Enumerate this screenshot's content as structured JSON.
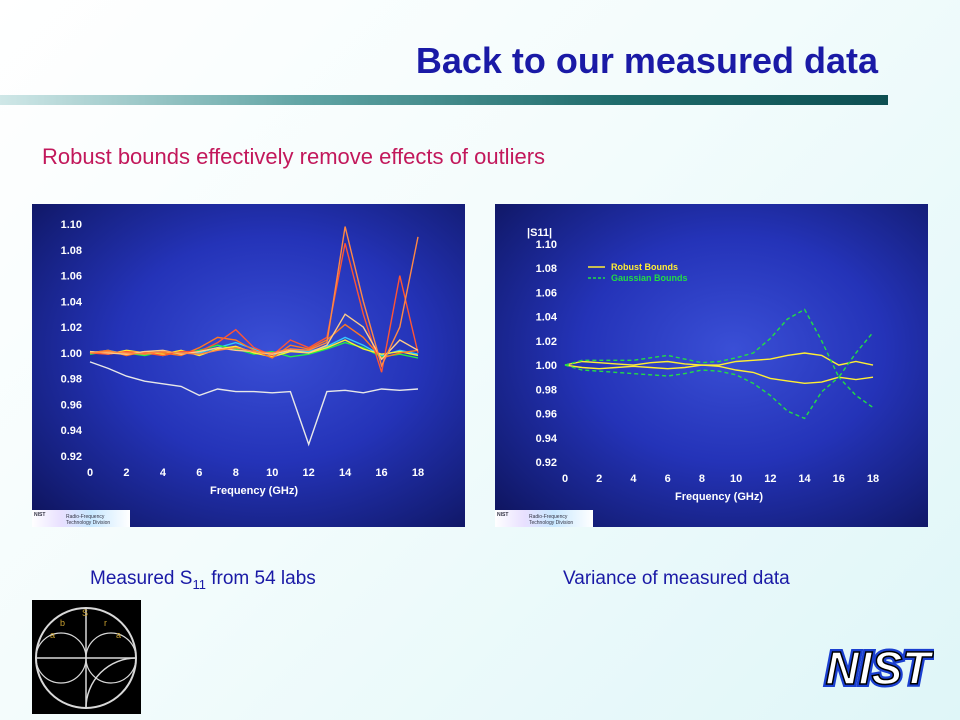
{
  "slide": {
    "title": "Back to our measured data",
    "subtitle": "Robust bounds effectively remove effects of outliers",
    "caption_left_prefix": "Measured S",
    "caption_left_sub": "11",
    "caption_left_suffix": " from 54 labs",
    "caption_right": "Variance of measured data",
    "badge_org": "NIST",
    "badge_division": "Radio-Frequency Technology Division",
    "nist_logo_text": "NIST",
    "smith_letters": [
      "b",
      "r",
      "S",
      "a",
      "a"
    ]
  },
  "colors": {
    "title": "#1a1aa6",
    "subtitle": "#c2185b",
    "robust": "#ffee33",
    "gaussian": "#22dd44",
    "panel_bg": "#2433b8"
  },
  "chart_data": [
    {
      "type": "line",
      "title": "",
      "xlabel": "Frequency (GHz)",
      "ylabel": "",
      "xlim": [
        0,
        18
      ],
      "ylim": [
        0.92,
        1.1
      ],
      "xticks": [
        "0",
        "2",
        "4",
        "6",
        "8",
        "10",
        "12",
        "14",
        "16",
        "18"
      ],
      "yticks": [
        "1.10",
        "1.08",
        "1.06",
        "1.04",
        "1.02",
        "1.00",
        "0.98",
        "0.96",
        "0.94",
        "0.92"
      ],
      "grid": false,
      "series": [
        {
          "color": "#33ccff",
          "x": [
            0,
            1,
            2,
            3,
            4,
            5,
            6,
            7,
            8,
            9,
            10,
            11,
            12,
            13,
            14,
            15,
            16,
            17,
            18
          ],
          "y": [
            1.0,
            1.002,
            0.999,
            1.001,
            0.998,
            1.001,
            1.0,
            1.004,
            1.008,
            1.003,
            0.998,
            1.002,
            1.001,
            1.005,
            1.012,
            1.006,
            0.998,
            1.002,
            0.999
          ]
        },
        {
          "color": "#22ee44",
          "x": [
            0,
            1,
            2,
            3,
            4,
            5,
            6,
            7,
            8,
            9,
            10,
            11,
            12,
            13,
            14,
            15,
            16,
            17,
            18
          ],
          "y": [
            0.999,
            1.001,
            1.0,
            0.998,
            1.001,
            0.999,
            1.002,
            1.006,
            1.003,
            0.999,
            1.001,
            0.997,
            0.999,
            1.003,
            1.008,
            1.004,
            0.997,
            0.999,
            0.996
          ]
        },
        {
          "color": "#ffee33",
          "x": [
            0,
            1,
            2,
            3,
            4,
            5,
            6,
            7,
            8,
            9,
            10,
            11,
            12,
            13,
            14,
            15,
            16,
            17,
            18
          ],
          "y": [
            1.001,
            0.999,
            1.002,
            1.0,
            0.999,
            1.002,
            0.998,
            1.003,
            1.005,
            1.0,
            0.997,
            1.001,
            1.0,
            1.004,
            1.01,
            1.003,
            0.999,
            1.001,
            0.998
          ]
        },
        {
          "color": "#ff7722",
          "x": [
            0,
            1,
            2,
            3,
            4,
            5,
            6,
            7,
            8,
            9,
            10,
            11,
            12,
            13,
            14,
            15,
            16,
            17,
            18
          ],
          "y": [
            1.0,
            1.002,
            0.998,
            1.001,
            1.0,
            0.998,
            1.004,
            1.012,
            1.01,
            1.002,
            0.996,
            1.006,
            1.003,
            1.01,
            1.022,
            1.012,
            0.996,
            1.0,
            1.002
          ]
        },
        {
          "color": "#ff5533",
          "x": [
            0,
            1,
            2,
            3,
            4,
            5,
            6,
            7,
            8,
            9,
            10,
            11,
            12,
            13,
            14,
            15,
            16,
            17,
            18
          ],
          "y": [
            1.0,
            0.999,
            1.001,
            1.0,
            0.998,
            1.001,
            1.001,
            1.008,
            1.018,
            1.004,
            0.998,
            1.01,
            1.004,
            1.012,
            1.085,
            1.03,
            0.985,
            1.06,
            1.0
          ]
        },
        {
          "color": "#ffcc88",
          "x": [
            0,
            1,
            2,
            3,
            4,
            5,
            6,
            7,
            8,
            9,
            10,
            11,
            12,
            13,
            14,
            15,
            16,
            17,
            18
          ],
          "y": [
            1.001,
            1.0,
            0.999,
            1.001,
            1.002,
            0.999,
            1.001,
            1.004,
            1.002,
            1.001,
            0.999,
            1.002,
            1.0,
            1.006,
            1.03,
            1.02,
            0.995,
            1.01,
            1.002
          ]
        },
        {
          "color": "#ff8844",
          "x": [
            0,
            1,
            2,
            3,
            4,
            5,
            6,
            7,
            8,
            9,
            10,
            11,
            12,
            13,
            14,
            15,
            16,
            17,
            18
          ],
          "y": [
            1.0,
            1.001,
            1.0,
            0.999,
            1.001,
            1.0,
            0.999,
            1.002,
            1.004,
            1.001,
            1.0,
            1.003,
            1.002,
            1.008,
            1.098,
            1.04,
            0.99,
            1.02,
            1.09
          ]
        },
        {
          "color": "#e8e8e8",
          "x": [
            0,
            1,
            2,
            3,
            4,
            5,
            6,
            7,
            8,
            9,
            10,
            11,
            12,
            13,
            14,
            15,
            16,
            17,
            18
          ],
          "y": [
            0.993,
            0.988,
            0.982,
            0.978,
            0.976,
            0.974,
            0.967,
            0.972,
            0.97,
            0.97,
            0.969,
            0.97,
            0.929,
            0.97,
            0.971,
            0.969,
            0.972,
            0.971,
            0.972
          ]
        }
      ]
    },
    {
      "type": "line",
      "title": "",
      "xlabel": "Frequency (GHz)",
      "ylabel": "|S11|",
      "xlim": [
        0,
        18
      ],
      "ylim": [
        0.92,
        1.1
      ],
      "xticks": [
        "0",
        "2",
        "4",
        "6",
        "8",
        "10",
        "12",
        "14",
        "16",
        "18"
      ],
      "yticks": [
        "1.10",
        "1.08",
        "1.06",
        "1.04",
        "1.02",
        "1.00",
        "0.98",
        "0.96",
        "0.94",
        "0.92"
      ],
      "grid": false,
      "legend_position": "top-left",
      "series": [
        {
          "name": "Robust Bounds",
          "color": "#ffee33",
          "dash": "solid",
          "x": [
            0,
            1,
            2,
            3,
            4,
            5,
            6,
            7,
            8,
            9,
            10,
            11,
            12,
            13,
            14,
            15,
            16,
            17,
            18
          ],
          "y": [
            1.0,
            1.003,
            1.002,
            1.001,
            1.0,
            1.002,
            1.003,
            1.001,
            1.0,
            1.0,
            1.003,
            1.004,
            1.005,
            1.008,
            1.01,
            1.008,
            1.0,
            1.003,
            1.0
          ]
        },
        {
          "name": "Robust Bounds",
          "color": "#ffee33",
          "dash": "solid",
          "x": [
            0,
            1,
            2,
            3,
            4,
            5,
            6,
            7,
            8,
            9,
            10,
            11,
            12,
            13,
            14,
            15,
            16,
            17,
            18
          ],
          "y": [
            1.0,
            0.998,
            0.997,
            0.998,
            0.999,
            0.998,
            0.997,
            0.998,
            1.0,
            0.999,
            0.996,
            0.994,
            0.989,
            0.987,
            0.985,
            0.986,
            0.99,
            0.988,
            0.99
          ]
        },
        {
          "name": "Gaussian Bounds",
          "color": "#22dd44",
          "dash": "dashed",
          "x": [
            0,
            1,
            2,
            3,
            4,
            5,
            6,
            7,
            8,
            9,
            10,
            11,
            12,
            13,
            14,
            15,
            16,
            17,
            18
          ],
          "y": [
            1.0,
            1.004,
            1.004,
            1.004,
            1.004,
            1.006,
            1.008,
            1.005,
            1.002,
            1.003,
            1.006,
            1.01,
            1.022,
            1.038,
            1.046,
            1.02,
            0.99,
            1.01,
            1.027
          ]
        },
        {
          "name": "Gaussian Bounds",
          "color": "#22dd44",
          "dash": "dashed",
          "x": [
            0,
            1,
            2,
            3,
            4,
            5,
            6,
            7,
            8,
            9,
            10,
            11,
            12,
            13,
            14,
            15,
            16,
            17,
            18
          ],
          "y": [
            1.0,
            0.996,
            0.995,
            0.994,
            0.993,
            0.992,
            0.991,
            0.993,
            0.996,
            0.995,
            0.992,
            0.985,
            0.975,
            0.962,
            0.956,
            0.978,
            0.99,
            0.975,
            0.965
          ]
        }
      ]
    }
  ]
}
